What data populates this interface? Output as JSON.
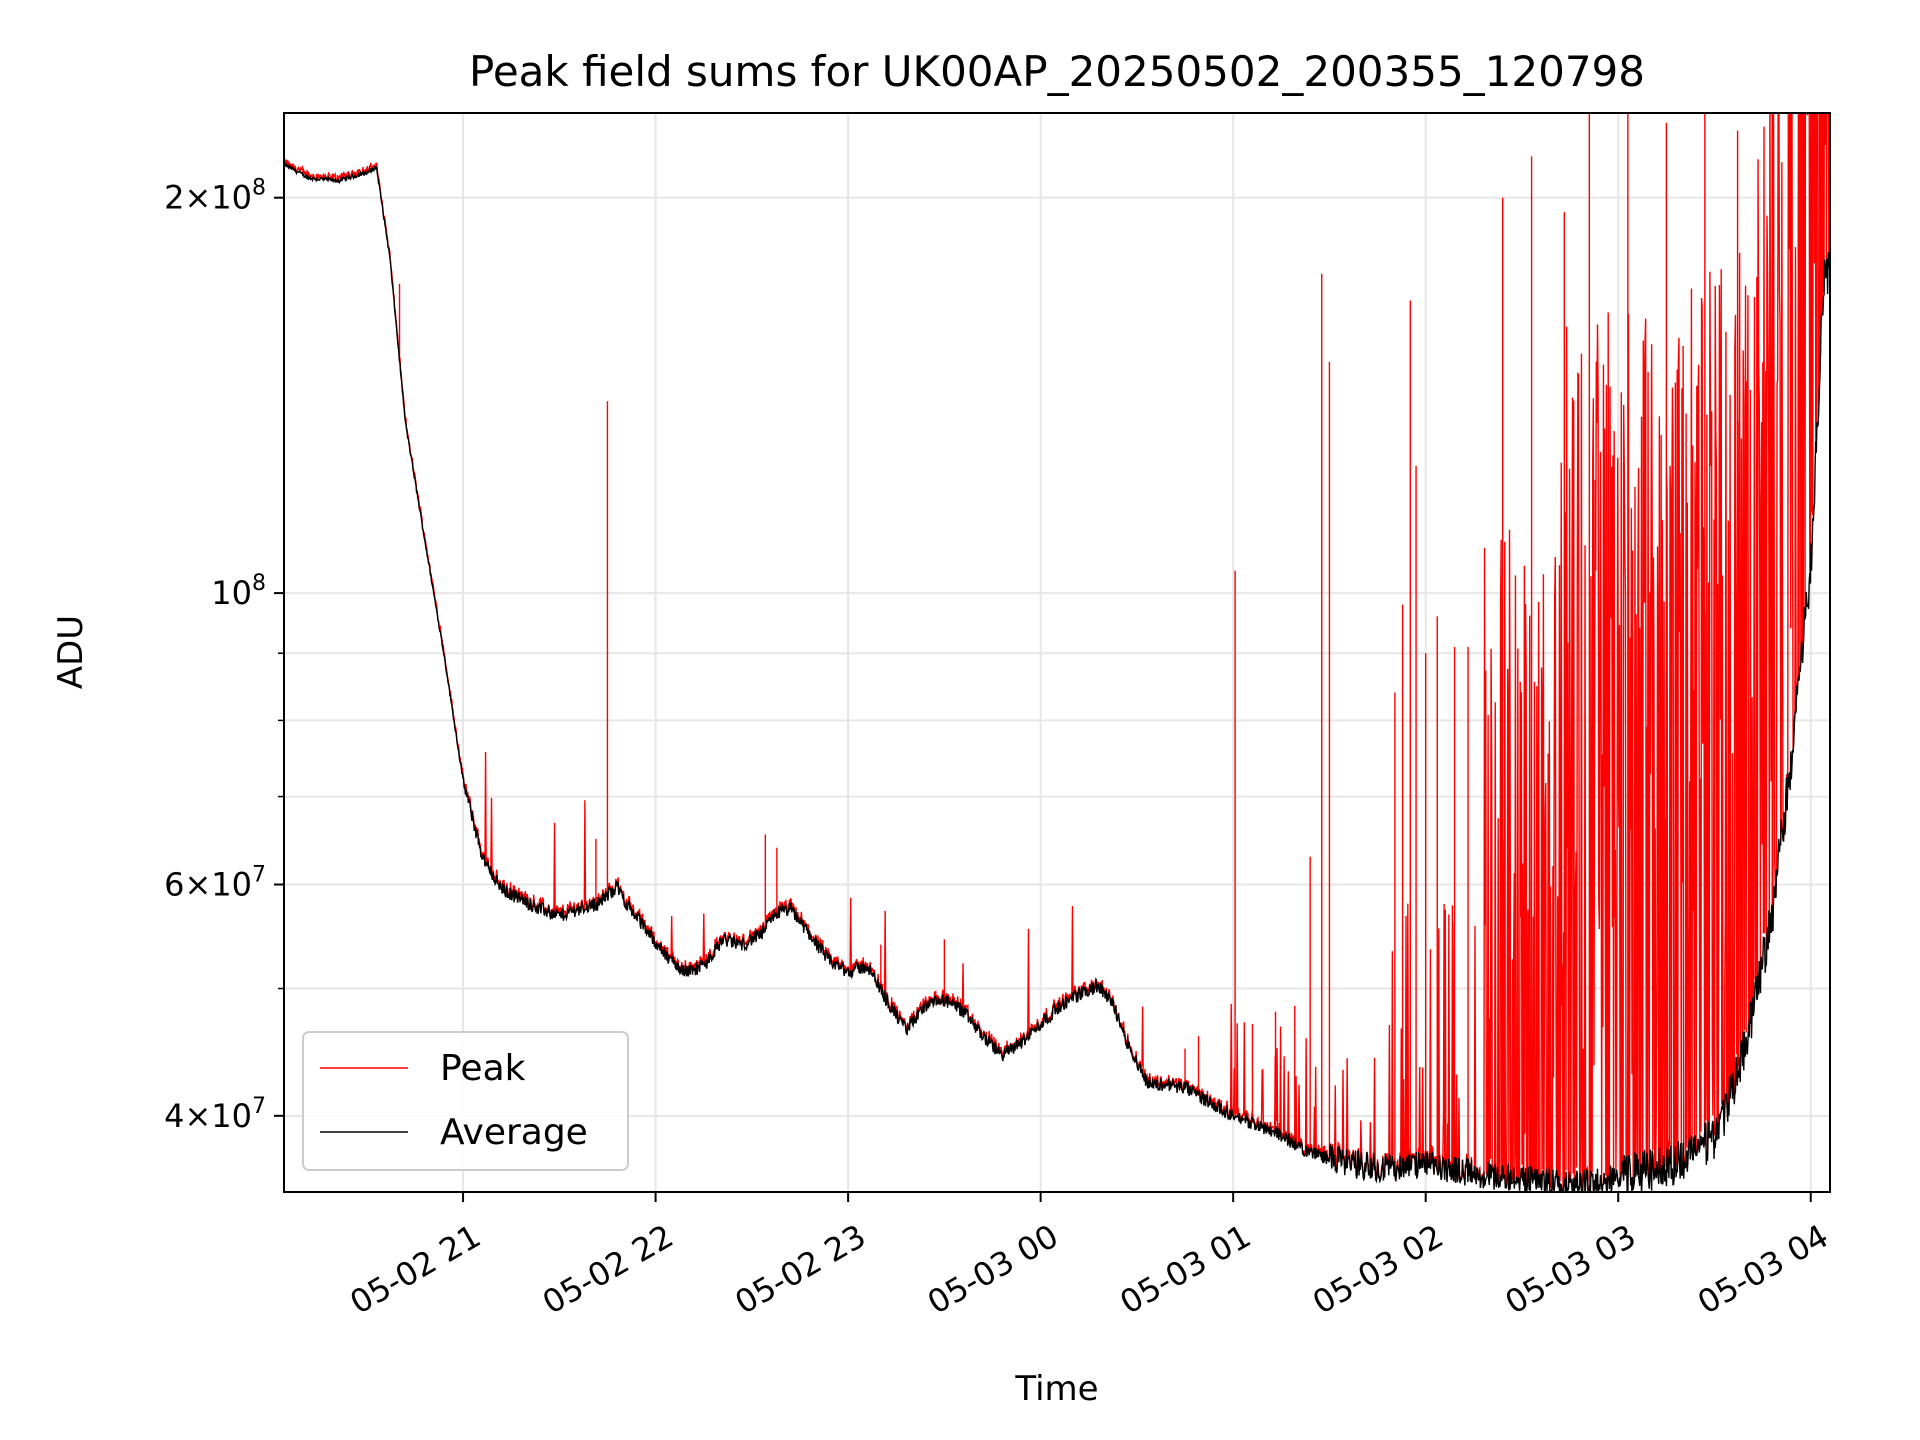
{
  "chart_data": {
    "type": "line",
    "title": "Peak field sums for UK00AP_20250502_200355_120798",
    "xlabel": "Time",
    "ylabel": "ADU",
    "yscale": "log",
    "ylim": [
      35000000,
      232000000
    ],
    "xlim_hours": [
      20.07,
      28.1
    ],
    "grid": true,
    "legend_position": "lower-left",
    "x_tick_labels": [
      "05-02 21",
      "05-02 22",
      "05-02 23",
      "05-03 00",
      "05-03 01",
      "05-03 02",
      "05-03 03",
      "05-03 04"
    ],
    "x_tick_hours": [
      21,
      22,
      23,
      24,
      25,
      26,
      27,
      28
    ],
    "y_tick_labels": [
      {
        "value": 200000000,
        "mantissa": "2",
        "exponent": "8"
      },
      {
        "value": 100000000,
        "mantissa": "",
        "exponent": "8"
      },
      {
        "value": 60000000,
        "mantissa": "6",
        "exponent": "7"
      },
      {
        "value": 40000000,
        "mantissa": "4",
        "exponent": "7"
      }
    ],
    "y_minor_ticks": [
      30000000,
      50000000,
      70000000,
      80000000,
      90000000
    ],
    "series": [
      {
        "name": "Peak",
        "color": "#ff0000",
        "base_x_hours": [
          20.07,
          20.2,
          20.35,
          20.5,
          20.55,
          20.62,
          20.7,
          20.8,
          20.9,
          21.0,
          21.1,
          21.2,
          21.3,
          21.4,
          21.5,
          21.6,
          21.7,
          21.8,
          21.85,
          21.95,
          22.05,
          22.15,
          22.25,
          22.35,
          22.45,
          22.55,
          22.62,
          22.7,
          22.8,
          22.9,
          23.0,
          23.1,
          23.2,
          23.3,
          23.4,
          23.5,
          23.6,
          23.7,
          23.8,
          23.9,
          24.0,
          24.1,
          24.2,
          24.3,
          24.38,
          24.45,
          24.55,
          24.6,
          24.65,
          24.75,
          24.9,
          25.0,
          25.2,
          25.4,
          25.6,
          25.8,
          26.0,
          26.2,
          26.4,
          26.6,
          26.8,
          27.0,
          27.2,
          27.35,
          27.5,
          27.6,
          27.7,
          27.8,
          27.9,
          28.0,
          28.07
        ],
        "base_y": [
          212000000,
          207000000,
          206000000,
          209000000,
          211000000,
          180000000,
          135000000,
          110000000,
          90000000,
          72000000,
          63000000,
          59500000,
          58500000,
          57500000,
          56800000,
          57500000,
          58000000,
          59800000,
          58000000,
          55500000,
          53000000,
          51500000,
          52000000,
          54500000,
          54000000,
          55000000,
          57000000,
          57500000,
          55000000,
          52500000,
          51500000,
          52000000,
          49000000,
          46500000,
          48500000,
          49000000,
          48000000,
          46000000,
          44500000,
          45500000,
          47000000,
          48500000,
          49500000,
          50200000,
          48500000,
          45500000,
          42500000,
          42200000,
          42300000,
          42000000,
          40800000,
          40000000,
          39000000,
          37500000,
          36800000,
          36500000,
          36700000,
          36300000,
          35900000,
          35700000,
          35600000,
          35900000,
          36400000,
          37000000,
          38500000,
          42000000,
          48000000,
          57000000,
          75000000,
          105000000,
          175000000
        ],
        "spikes": [
          {
            "x": 20.67,
            "y": 172000000
          },
          {
            "x": 21.69,
            "y": 65000000
          },
          {
            "x": 21.75,
            "y": 140000000
          },
          {
            "x": 22.57,
            "y": 65500000
          },
          {
            "x": 22.63,
            "y": 64000000
          },
          {
            "x": 23.17,
            "y": 54000000
          },
          {
            "x": 23.5,
            "y": 54500000
          },
          {
            "x": 24.75,
            "y": 45000000
          },
          {
            "x": 24.82,
            "y": 46000000
          },
          {
            "x": 25.01,
            "y": 104000000
          },
          {
            "x": 25.1,
            "y": 47000000
          },
          {
            "x": 25.22,
            "y": 48000000
          },
          {
            "x": 25.32,
            "y": 48500000
          },
          {
            "x": 25.4,
            "y": 63000000
          },
          {
            "x": 25.46,
            "y": 175000000
          },
          {
            "x": 25.5,
            "y": 150000000
          },
          {
            "x": 25.84,
            "y": 84000000
          },
          {
            "x": 25.88,
            "y": 98000000
          },
          {
            "x": 25.92,
            "y": 167000000
          },
          {
            "x": 25.95,
            "y": 125000000
          },
          {
            "x": 26.0,
            "y": 90000000
          },
          {
            "x": 26.06,
            "y": 96000000
          },
          {
            "x": 26.15,
            "y": 91000000
          },
          {
            "x": 26.22,
            "y": 91000000
          },
          {
            "x": 26.4,
            "y": 200000000
          },
          {
            "x": 26.55,
            "y": 215000000
          },
          {
            "x": 26.72,
            "y": 195000000
          },
          {
            "x": 26.85,
            "y": 232000000
          },
          {
            "x": 27.05,
            "y": 232000000
          },
          {
            "x": 27.25,
            "y": 228000000
          },
          {
            "x": 27.45,
            "y": 232000000
          },
          {
            "x": 27.62,
            "y": 225000000
          },
          {
            "x": 27.8,
            "y": 232000000
          },
          {
            "x": 27.95,
            "y": 232000000
          }
        ]
      },
      {
        "name": "Average",
        "color": "#000000"
      }
    ]
  }
}
